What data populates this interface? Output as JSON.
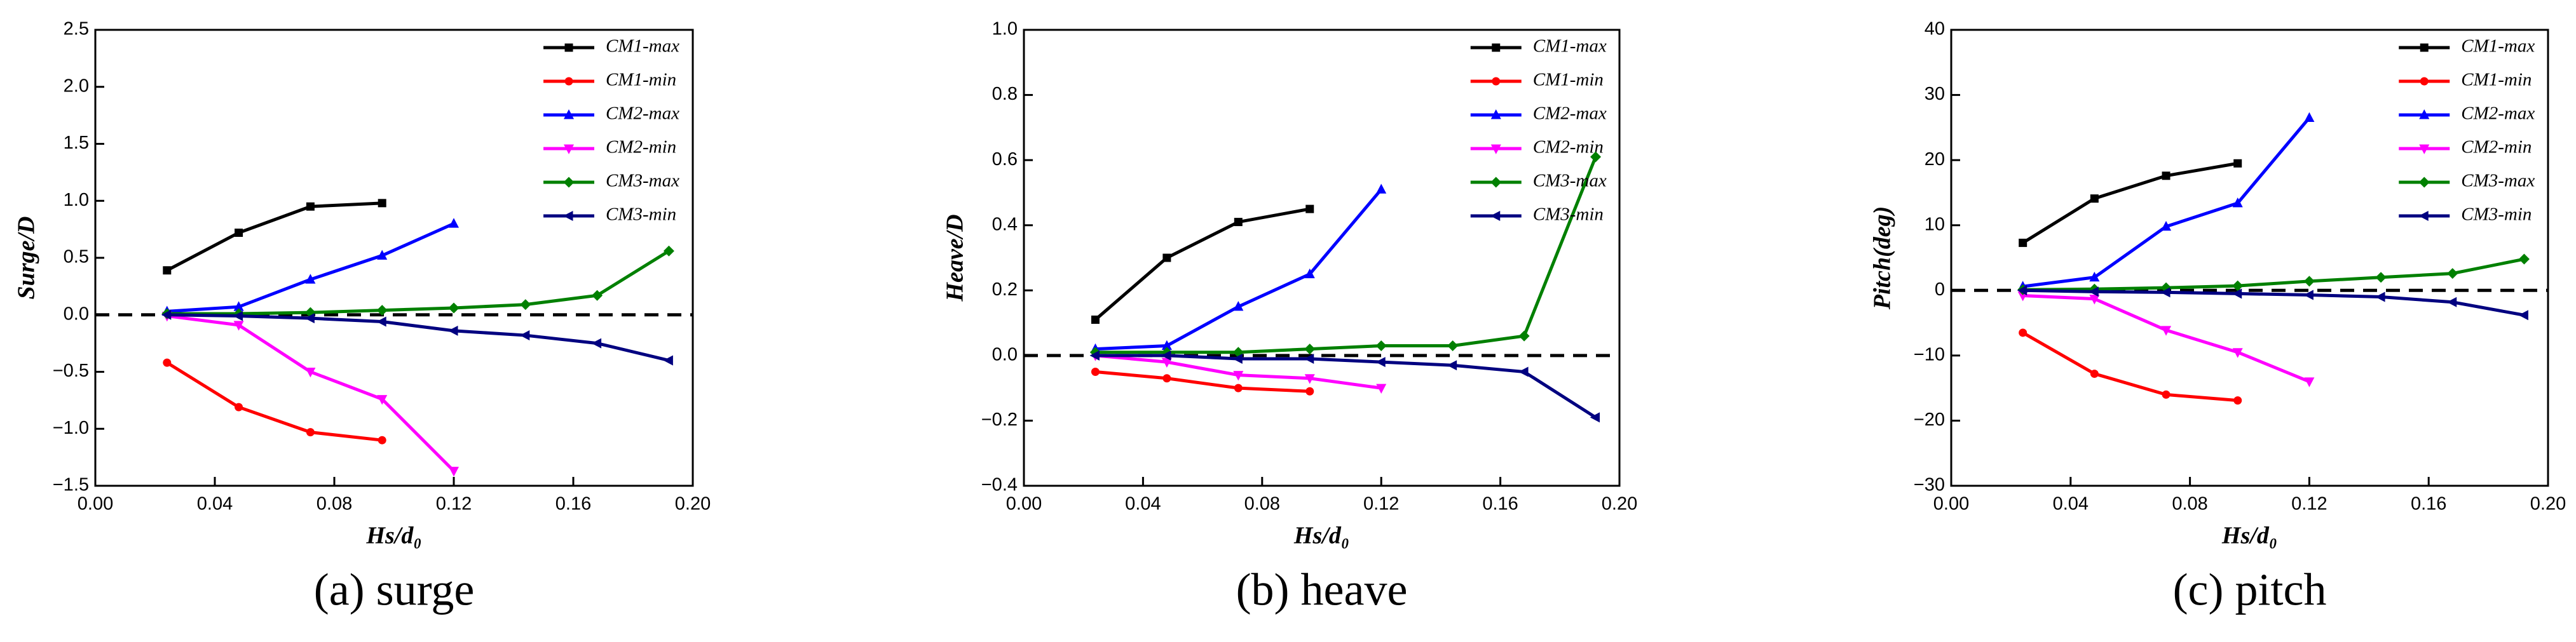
{
  "chart_data": [
    {
      "type": "line",
      "y_label": "Surge/D",
      "x_label": "Hs/d₀",
      "caption": "(a) surge",
      "x": [
        0.024,
        0.048,
        0.072,
        0.096,
        0.12,
        0.144,
        0.168,
        0.192
      ],
      "xlim": [
        0,
        0.2
      ],
      "xticks": [
        {
          "value": 0,
          "label": "0.00"
        },
        0.04,
        0.08,
        0.12,
        0.16,
        {
          "value": 0.2,
          "label": "0.20"
        }
      ],
      "ylim": [
        -1.5,
        2.5
      ],
      "yticks": [
        {
          "value": -1.5,
          "label": "−1.5"
        },
        {
          "value": -1,
          "label": "−1.0"
        },
        {
          "value": -0.5,
          "label": "−0.5"
        },
        {
          "value": 0,
          "label": "0.0"
        },
        0.5,
        {
          "value": 1,
          "label": "1.0"
        },
        1.5,
        {
          "value": 2,
          "label": "2.0"
        },
        2.5
      ],
      "hline": 0,
      "legend": "upper right",
      "series": [
        {
          "name": "CM1-max",
          "color": "#000000",
          "values": [
            0.39,
            0.72,
            0.95,
            0.98,
            null,
            null,
            null,
            null
          ]
        },
        {
          "name": "CM1-min",
          "color": "#ff0000",
          "values": [
            -0.42,
            -0.81,
            -1.03,
            -1.1,
            null,
            null,
            null,
            null
          ]
        },
        {
          "name": "CM2-max",
          "color": "#0000ff",
          "values": [
            0.03,
            0.07,
            0.31,
            0.52,
            0.8,
            null,
            null,
            null
          ]
        },
        {
          "name": "CM2-min",
          "color": "#ff00ff",
          "values": [
            -0.01,
            -0.09,
            -0.5,
            -0.74,
            -1.37,
            null,
            null,
            null
          ]
        },
        {
          "name": "CM3-max",
          "color": "#008000",
          "values": [
            0.01,
            0.01,
            0.02,
            0.04,
            0.06,
            0.09,
            0.17,
            0.56
          ]
        },
        {
          "name": "CM3-min",
          "color": "#000080",
          "values": [
            0.0,
            -0.01,
            -0.03,
            -0.06,
            -0.14,
            -0.18,
            -0.25,
            -0.4
          ]
        }
      ]
    },
    {
      "type": "line",
      "y_label": "Heave/D",
      "x_label": "Hs/d₀",
      "caption": "(b) heave",
      "x": [
        0.024,
        0.048,
        0.072,
        0.096,
        0.12,
        0.144,
        0.168,
        0.192
      ],
      "xlim": [
        0,
        0.2
      ],
      "xticks": [
        {
          "value": 0,
          "label": "0.00"
        },
        0.04,
        0.08,
        0.12,
        0.16,
        {
          "value": 0.2,
          "label": "0.20"
        }
      ],
      "ylim": [
        -0.4,
        1.0
      ],
      "yticks": [
        {
          "value": -0.4,
          "label": "−0.4"
        },
        {
          "value": -0.2,
          "label": "−0.2"
        },
        {
          "value": 0,
          "label": "0.0"
        },
        0.2,
        0.4,
        0.6,
        0.8,
        {
          "value": 1,
          "label": "1.0"
        }
      ],
      "hline": 0,
      "legend": "upper right",
      "series": [
        {
          "name": "CM1-max",
          "color": "#000000",
          "values": [
            0.11,
            0.3,
            0.41,
            0.45,
            null,
            null,
            null,
            null
          ]
        },
        {
          "name": "CM1-min",
          "color": "#ff0000",
          "values": [
            -0.05,
            -0.07,
            -0.1,
            -0.11,
            null,
            null,
            null,
            null
          ]
        },
        {
          "name": "CM2-max",
          "color": "#0000ff",
          "values": [
            0.02,
            0.03,
            0.15,
            0.25,
            0.51,
            null,
            null,
            null
          ]
        },
        {
          "name": "CM2-min",
          "color": "#ff00ff",
          "values": [
            0.0,
            -0.02,
            -0.06,
            -0.07,
            -0.1,
            null,
            null,
            null
          ]
        },
        {
          "name": "CM3-max",
          "color": "#008000",
          "values": [
            0.01,
            0.01,
            0.01,
            0.02,
            0.03,
            0.03,
            0.06,
            0.61
          ]
        },
        {
          "name": "CM3-min",
          "color": "#000080",
          "values": [
            0.0,
            0.0,
            -0.01,
            -0.01,
            -0.02,
            -0.03,
            -0.05,
            -0.19
          ]
        }
      ]
    },
    {
      "type": "line",
      "y_label": "Pitch(deg)",
      "x_label": "Hs/d₀",
      "caption": "(c) pitch",
      "x": [
        0.024,
        0.048,
        0.072,
        0.096,
        0.12,
        0.144,
        0.168,
        0.192
      ],
      "xlim": [
        0,
        0.2
      ],
      "xticks": [
        {
          "value": 0,
          "label": "0.00"
        },
        0.04,
        0.08,
        0.12,
        0.16,
        {
          "value": 0.2,
          "label": "0.20"
        }
      ],
      "ylim": [
        -30,
        40
      ],
      "yticks": [
        {
          "value": -30,
          "label": "−30"
        },
        {
          "value": -20,
          "label": "−20"
        },
        {
          "value": -10,
          "label": "−10"
        },
        0,
        10,
        20,
        30,
        40
      ],
      "hline": 0,
      "legend": "upper right",
      "series": [
        {
          "name": "CM1-max",
          "color": "#000000",
          "values": [
            7.3,
            14.1,
            17.6,
            19.5,
            null,
            null,
            null,
            null
          ]
        },
        {
          "name": "CM1-min",
          "color": "#ff0000",
          "values": [
            -6.5,
            -12.8,
            -16.0,
            -16.9,
            null,
            null,
            null,
            null
          ]
        },
        {
          "name": "CM2-max",
          "color": "#0000ff",
          "values": [
            0.6,
            2.0,
            9.8,
            13.4,
            26.5,
            null,
            null,
            null
          ]
        },
        {
          "name": "CM2-min",
          "color": "#ff00ff",
          "values": [
            -0.8,
            -1.3,
            -6.1,
            -9.5,
            -14.0,
            null,
            null,
            null
          ]
        },
        {
          "name": "CM3-max",
          "color": "#008000",
          "values": [
            0.1,
            0.2,
            0.4,
            0.7,
            1.4,
            2.0,
            2.6,
            4.8
          ]
        },
        {
          "name": "CM3-min",
          "color": "#000080",
          "values": [
            0.0,
            -0.2,
            -0.3,
            -0.5,
            -0.7,
            -1.0,
            -1.8,
            -3.8
          ]
        }
      ]
    }
  ]
}
